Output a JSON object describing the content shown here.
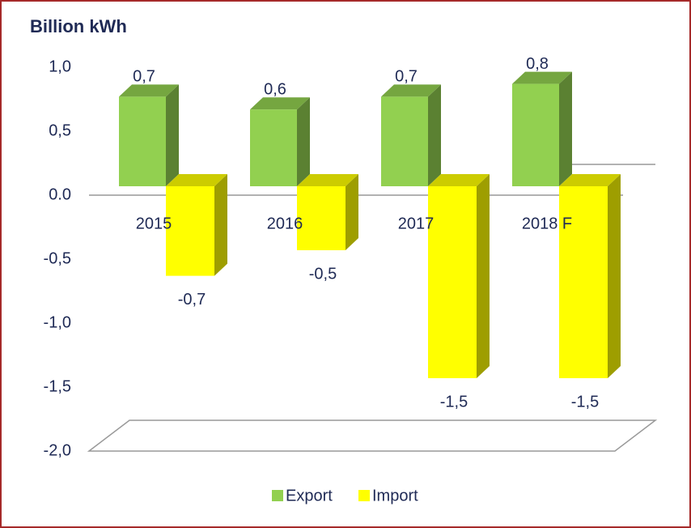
{
  "chart_data": {
    "type": "bar3d",
    "title": "Billion kWh",
    "categories": [
      "2015",
      "2016",
      "2017",
      "2018 F"
    ],
    "series": [
      {
        "name": "Export",
        "color": "#92d050",
        "values": [
          0.7,
          0.6,
          0.7,
          0.8
        ],
        "value_labels": [
          "0,7",
          "0,6",
          "0,7",
          "0,8"
        ]
      },
      {
        "name": "Import",
        "color": "#ffff00",
        "values": [
          -0.7,
          -0.5,
          -1.5,
          -1.5
        ],
        "value_labels": [
          "-0,7",
          "-0,5",
          "-1,5",
          "-1,5"
        ]
      }
    ],
    "ylim": [
      -2.0,
      1.0
    ],
    "yticks": [
      {
        "value": 1.0,
        "label": "1,0"
      },
      {
        "value": 0.5,
        "label": "0,5"
      },
      {
        "value": 0,
        "label": "0.0"
      },
      {
        "value": -0.5,
        "label": "-0,5"
      },
      {
        "value": -1.0,
        "label": "-1,0"
      },
      {
        "value": -1.5,
        "label": "-1,5"
      },
      {
        "value": -2.0,
        "label": "-2,0"
      }
    ],
    "legend": "bottom"
  }
}
